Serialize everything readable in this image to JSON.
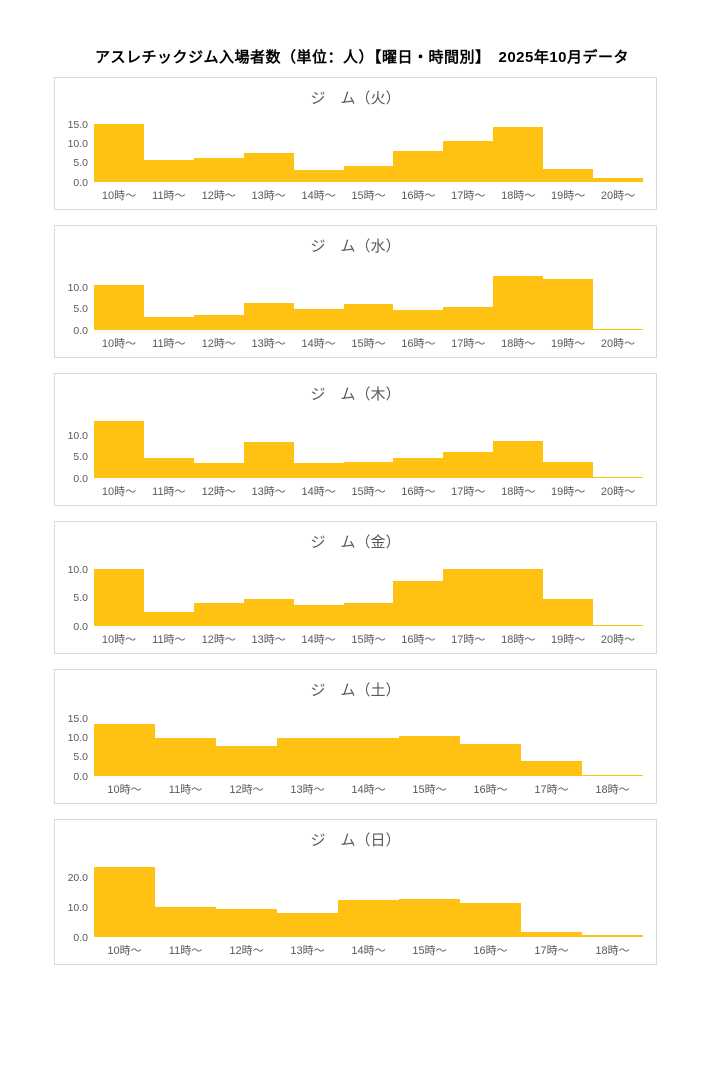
{
  "page": {
    "title": "アスレチックジム入場者数（単位：人）【曜日・時間別】　2025年10月データ"
  },
  "colors": {
    "bar": "#FFC112",
    "panel_border": "#D9D9D9",
    "page_title": "#000000",
    "chart_title": "#595959",
    "axis_label": "#595959",
    "background": "#FFFFFF"
  },
  "chart_data": [
    {
      "type": "bar",
      "title": "ジ　ム（火）",
      "day": "火",
      "categories": [
        "10時～",
        "11時～",
        "12時～",
        "13時～",
        "14時～",
        "15時～",
        "16時～",
        "17時～",
        "18時～",
        "19時～",
        "20時～"
      ],
      "values": [
        15.0,
        5.6,
        6.3,
        7.4,
        3.0,
        4.2,
        7.9,
        10.6,
        14.1,
        3.4,
        1.0
      ],
      "xlabel": "",
      "ylabel": "",
      "ylim": [
        0,
        15
      ],
      "yticks": [
        15.0,
        10.0,
        5.0,
        0.0
      ],
      "grid": false,
      "legend": false
    },
    {
      "type": "bar",
      "title": "ジ　ム（水）",
      "day": "水",
      "categories": [
        "10時～",
        "11時～",
        "12時～",
        "13時～",
        "14時～",
        "15時～",
        "16時～",
        "17時～",
        "18時～",
        "19時～",
        "20時～"
      ],
      "values": [
        10.6,
        3.1,
        3.6,
        6.4,
        5.0,
        6.1,
        4.6,
        5.4,
        12.6,
        11.9,
        0.3
      ],
      "xlabel": "",
      "ylabel": "",
      "ylim": [
        0,
        14
      ],
      "yticks": [
        10.0,
        5.0,
        0.0
      ],
      "grid": false,
      "legend": false
    },
    {
      "type": "bar",
      "title": "ジ　ム（木）",
      "day": "木",
      "categories": [
        "10時～",
        "11時～",
        "12時～",
        "13時～",
        "14時～",
        "15時～",
        "16時～",
        "17時～",
        "18時～",
        "19時～",
        "20時～"
      ],
      "values": [
        13.3,
        4.6,
        3.6,
        8.3,
        3.4,
        3.8,
        4.7,
        6.0,
        8.6,
        3.7,
        0.2
      ],
      "xlabel": "",
      "ylabel": "",
      "ylim": [
        0,
        14
      ],
      "yticks": [
        10.0,
        5.0,
        0.0
      ],
      "grid": false,
      "legend": false
    },
    {
      "type": "bar",
      "title": "ジ　ム（金）",
      "day": "金",
      "categories": [
        "10時～",
        "11時～",
        "12時～",
        "13時～",
        "14時～",
        "15時～",
        "16時～",
        "17時～",
        "18時～",
        "19時～",
        "20時～"
      ],
      "values": [
        10.0,
        2.5,
        4.1,
        4.7,
        3.6,
        4.0,
        7.9,
        10.0,
        10.0,
        4.8,
        0.2
      ],
      "xlabel": "",
      "ylabel": "",
      "ylim": [
        0,
        10
      ],
      "yticks": [
        10.0,
        5.0,
        0.0
      ],
      "grid": false,
      "legend": false
    },
    {
      "type": "bar",
      "title": "ジ　ム（土）",
      "day": "土",
      "categories": [
        "10時～",
        "11時～",
        "12時～",
        "13時～",
        "14時～",
        "15時～",
        "16時～",
        "17時～",
        "18時～"
      ],
      "values": [
        13.7,
        10.0,
        7.8,
        9.9,
        9.9,
        10.4,
        8.5,
        4.0,
        0.3
      ],
      "xlabel": "",
      "ylabel": "",
      "ylim": [
        0,
        16
      ],
      "yticks": [
        15.0,
        10.0,
        5.0,
        0.0
      ],
      "grid": false,
      "legend": false
    },
    {
      "type": "bar",
      "title": "ジ　ム（日）",
      "day": "日",
      "categories": [
        "10時～",
        "11時～",
        "12時～",
        "13時～",
        "14時～",
        "15時～",
        "16時～",
        "17時～",
        "18時～"
      ],
      "values": [
        23.3,
        10.0,
        9.2,
        8.1,
        12.3,
        12.7,
        11.4,
        1.6,
        0.5
      ],
      "xlabel": "",
      "ylabel": "",
      "ylim": [
        0,
        25
      ],
      "yticks": [
        20.0,
        10.0,
        0.0
      ],
      "grid": false,
      "legend": false
    }
  ]
}
